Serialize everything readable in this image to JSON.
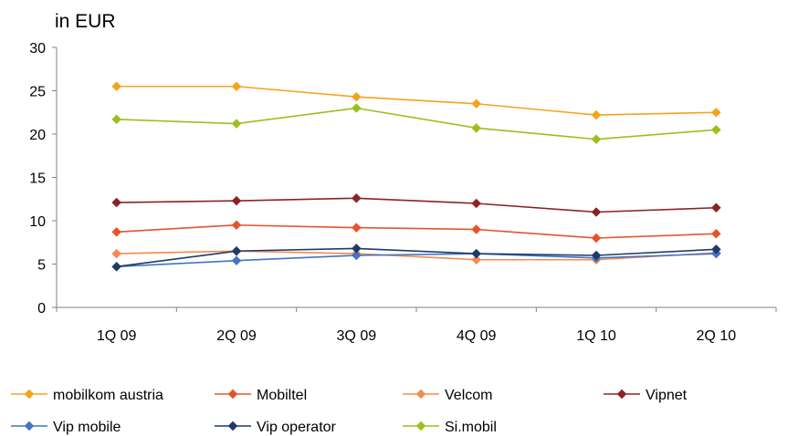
{
  "chart_data": {
    "type": "line",
    "unit_label": "in EUR",
    "title": "",
    "xlabel": "",
    "ylabel": "",
    "categories": [
      "1Q 09",
      "2Q 09",
      "3Q 09",
      "4Q 09",
      "1Q 10",
      "2Q 10"
    ],
    "ylim": [
      0,
      30
    ],
    "yticks": [
      0,
      5,
      10,
      15,
      20,
      25,
      30
    ],
    "grid": false,
    "legend_position": "bottom",
    "series": [
      {
        "name": "mobilkom austria",
        "color": "#f5a31a",
        "values": [
          25.5,
          25.5,
          24.3,
          23.5,
          22.2,
          22.5
        ]
      },
      {
        "name": "Mobiltel",
        "color": "#e5532b",
        "values": [
          8.7,
          9.5,
          9.2,
          9.0,
          8.0,
          8.5
        ]
      },
      {
        "name": "Velcom",
        "color": "#f58a50",
        "values": [
          6.2,
          6.5,
          6.2,
          5.5,
          5.5,
          6.3
        ]
      },
      {
        "name": "Vipnet",
        "color": "#8b2323",
        "values": [
          12.1,
          12.3,
          12.6,
          12.0,
          11.0,
          11.5
        ]
      },
      {
        "name": "Vip mobile",
        "color": "#4472c4",
        "values": [
          4.7,
          5.4,
          6.0,
          6.2,
          5.7,
          6.2
        ]
      },
      {
        "name": "Vip operator",
        "color": "#1f3a68",
        "values": [
          4.7,
          6.5,
          6.8,
          6.2,
          6.0,
          6.7
        ]
      },
      {
        "name": "Si.mobil",
        "color": "#9cbf1e",
        "values": [
          21.7,
          21.2,
          23.0,
          20.7,
          19.4,
          20.5
        ]
      }
    ]
  }
}
